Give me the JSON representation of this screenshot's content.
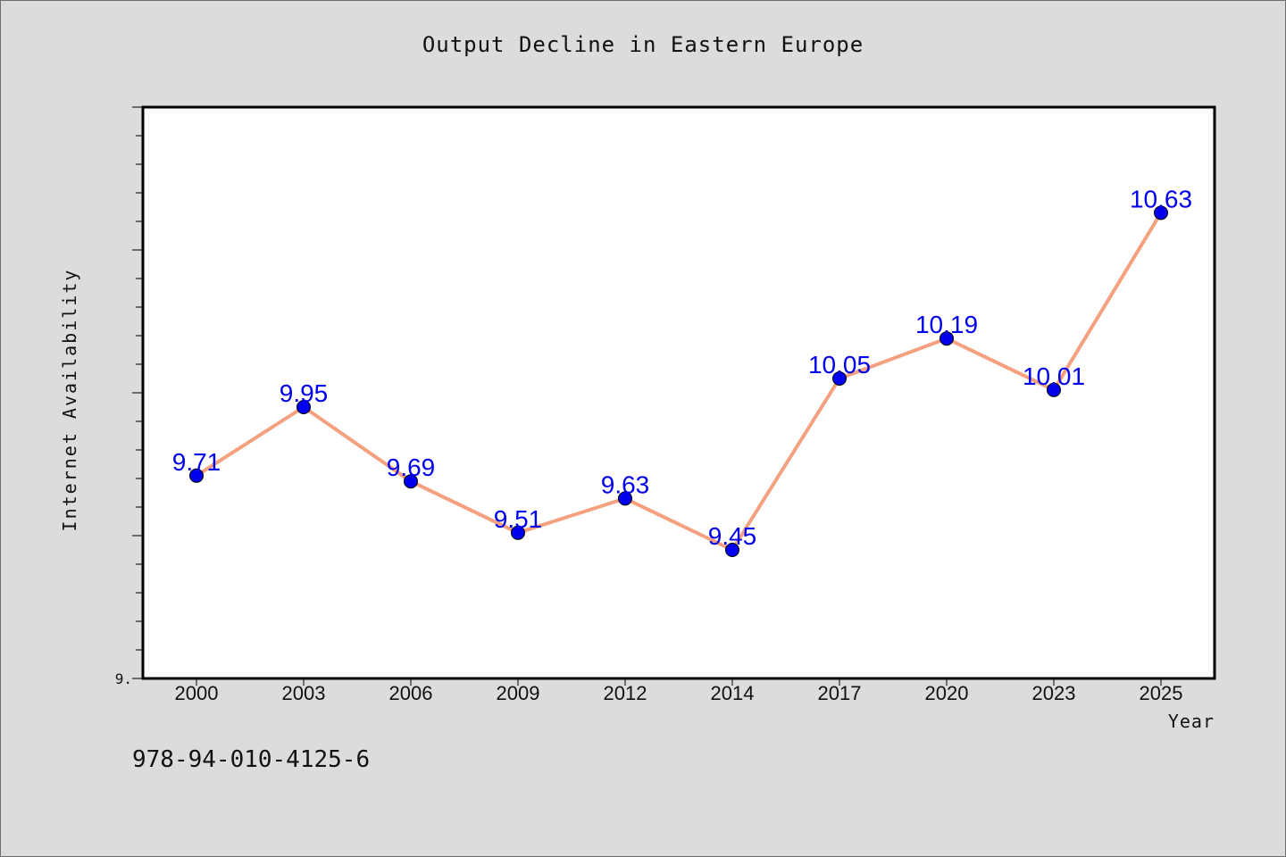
{
  "chart_data": {
    "type": "line",
    "title": "Output Decline in Eastern Europe",
    "xlabel": "Year",
    "ylabel": "Internet Availability",
    "categories": [
      "2000",
      "2003",
      "2006",
      "2009",
      "2012",
      "2014",
      "2017",
      "2020",
      "2023",
      "2025"
    ],
    "values": [
      9.71,
      9.95,
      9.69,
      9.51,
      9.63,
      9.45,
      10.05,
      10.19,
      10.01,
      10.63
    ],
    "value_labels": [
      "9.71",
      "9.95",
      "9.69",
      "9.51",
      "9.63",
      "9.45",
      "10.05",
      "10.19",
      "10.01",
      "10.63"
    ],
    "y_tick_label": "9.",
    "ylim": [
      9.0,
      11.0
    ],
    "grid": false,
    "line_color": "#f5a07e",
    "marker_color": "#0000ee",
    "label_color": "#0000ee"
  },
  "footer": {
    "isbn": "978-94-010-4125-6"
  }
}
